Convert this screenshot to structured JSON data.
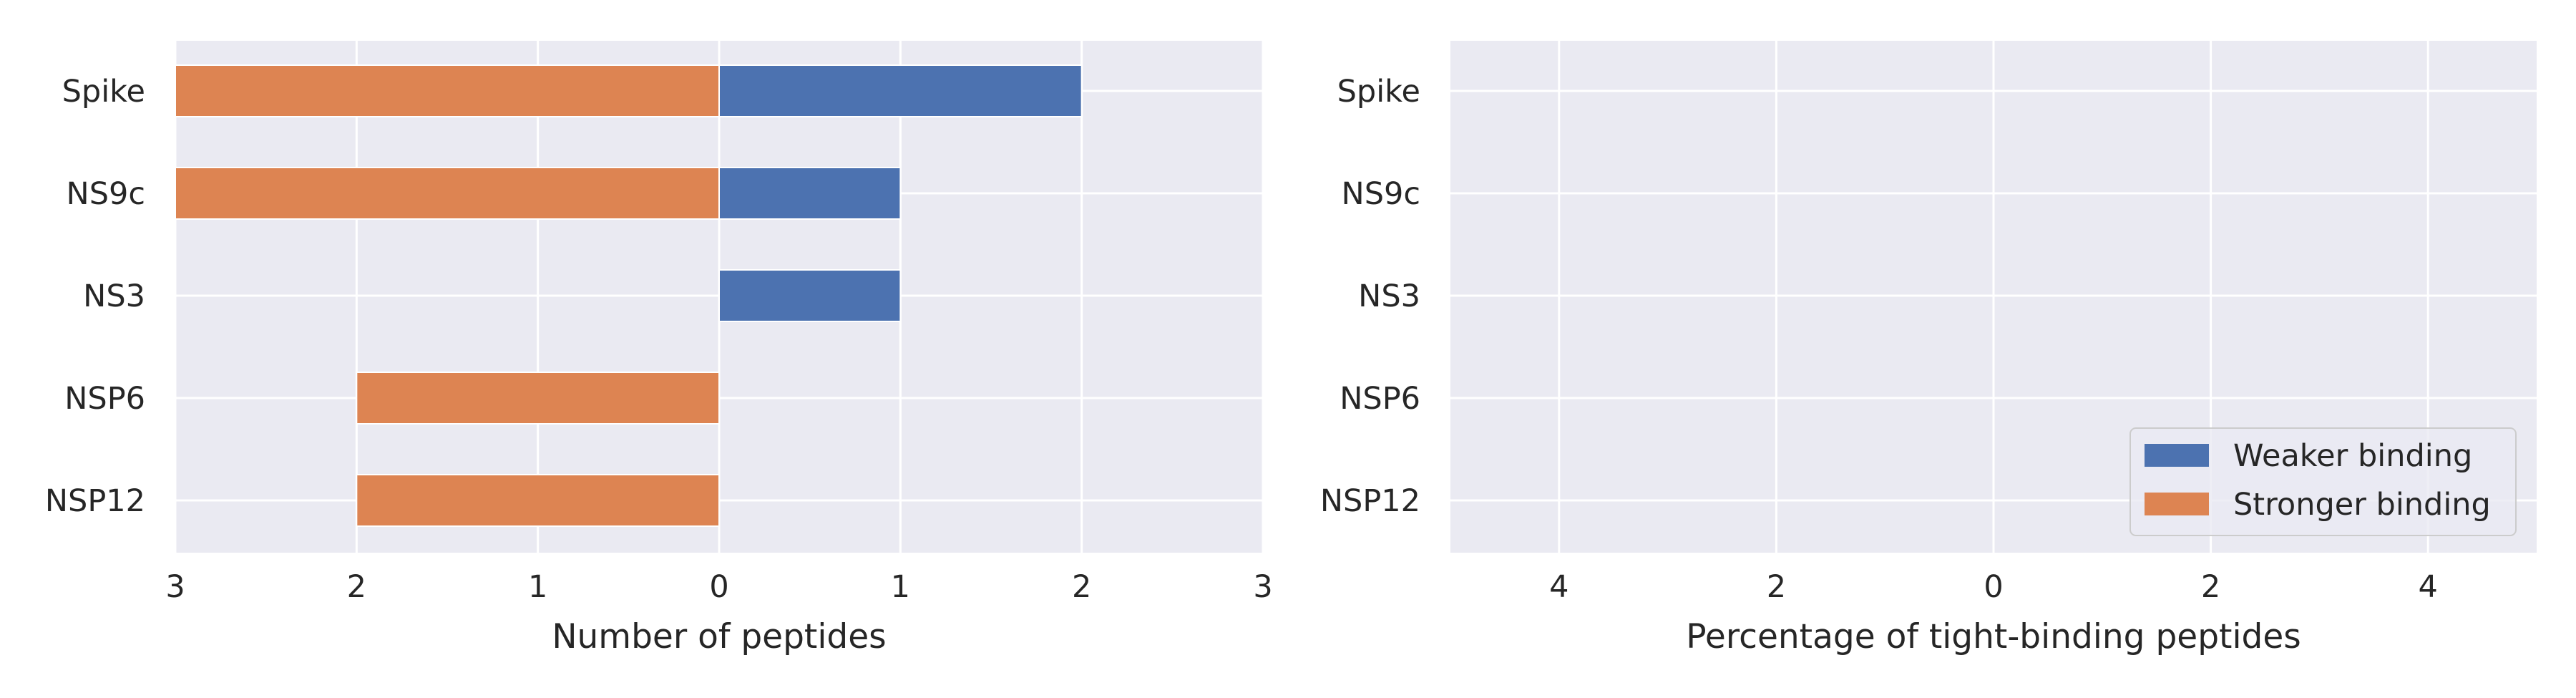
{
  "chart_data": [
    {
      "type": "bar",
      "orientation": "horizontal",
      "categories": [
        "Spike",
        "NS9c",
        "NS3",
        "NSP6",
        "NSP12"
      ],
      "series": [
        {
          "name": "Weaker binding",
          "values": [
            2,
            1,
            1,
            0,
            0
          ],
          "color": "#4c72b0"
        },
        {
          "name": "Stronger binding",
          "values": [
            -3,
            -3,
            0,
            -2,
            -2
          ],
          "color": "#dd8452"
        }
      ],
      "xlabel": "Number of peptides",
      "xlim": [
        -3,
        3
      ],
      "xticks": [
        -3,
        -2,
        -1,
        0,
        1,
        2,
        3
      ],
      "xtick_labels": [
        "3",
        "2",
        "1",
        "0",
        "1",
        "2",
        "3"
      ],
      "grid": true,
      "background": "#eaeaf2"
    },
    {
      "type": "bar",
      "orientation": "horizontal",
      "categories": [
        "Spike",
        "NS9c",
        "NS3",
        "NSP6",
        "NSP12"
      ],
      "series": [
        {
          "name": "Weaker binding",
          "values": [
            0,
            0,
            0,
            0,
            0
          ],
          "color": "#4c72b0"
        },
        {
          "name": "Stronger binding",
          "values": [
            0,
            0,
            0,
            0,
            0
          ],
          "color": "#dd8452"
        }
      ],
      "xlabel": "Percentage of tight-binding peptides",
      "xlim": [
        -5,
        5
      ],
      "xticks": [
        -4,
        -2,
        0,
        2,
        4
      ],
      "xtick_labels": [
        "4",
        "2",
        "0",
        "2",
        "4"
      ],
      "grid": true,
      "legend": {
        "placement": "lower-right",
        "entries": [
          "Weaker binding",
          "Stronger binding"
        ]
      },
      "background": "#eaeaf2"
    }
  ]
}
